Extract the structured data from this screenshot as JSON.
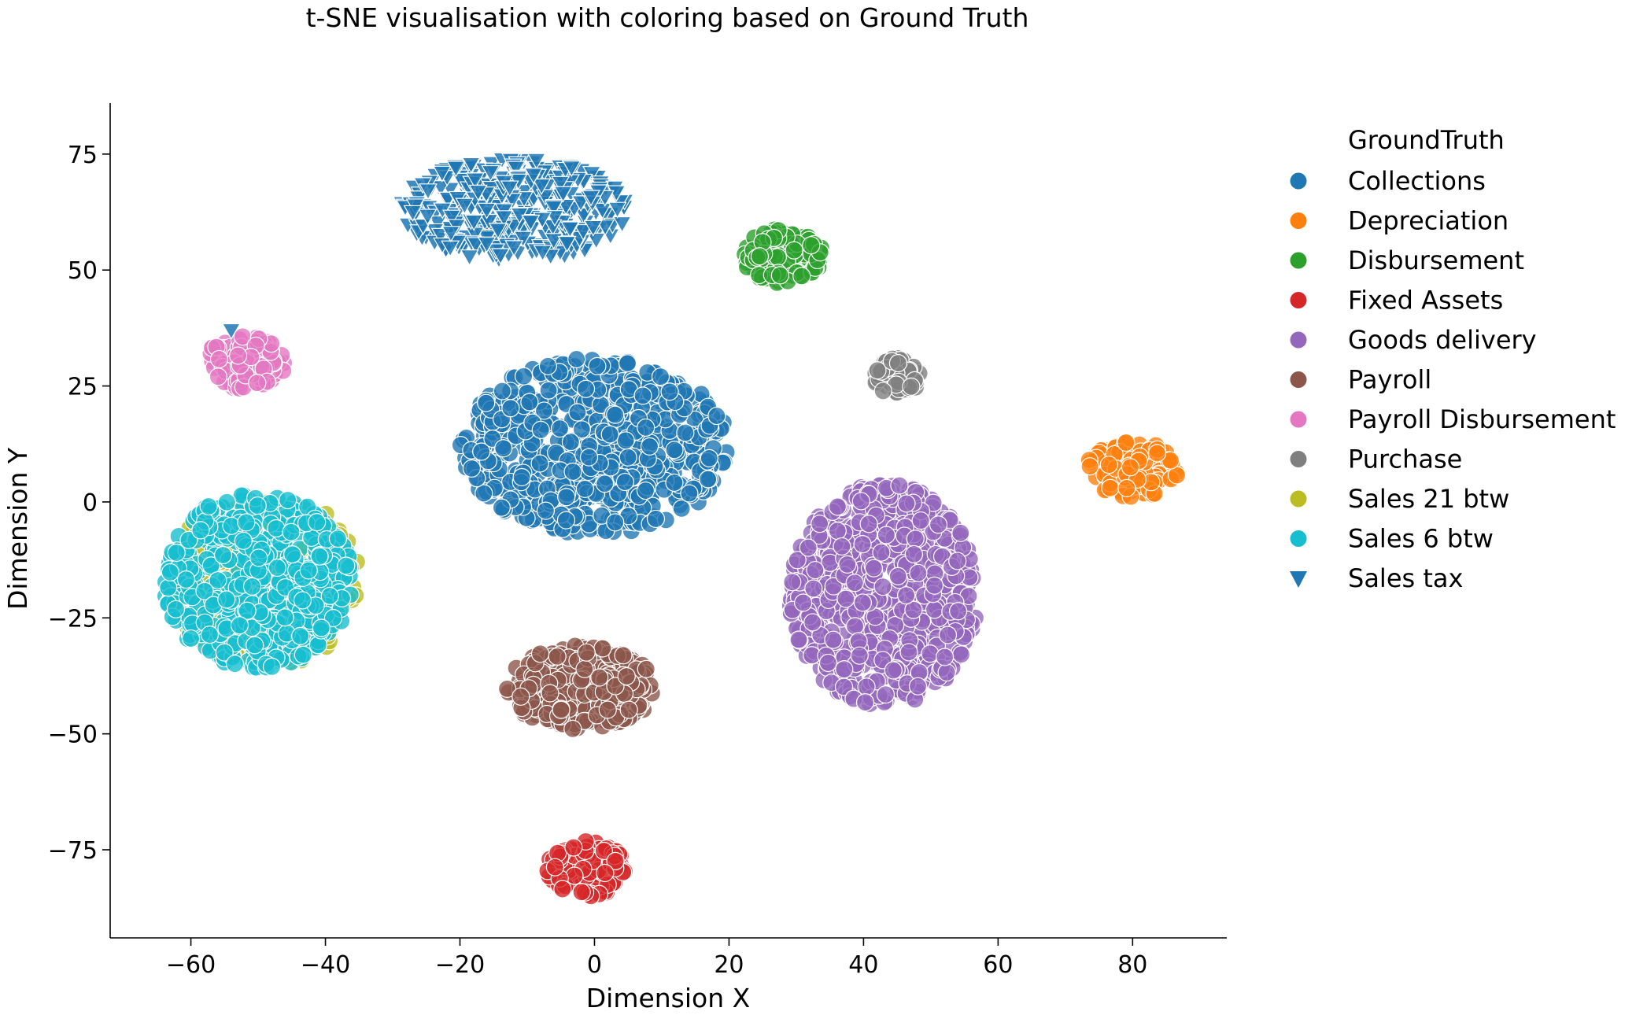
{
  "chart_data": {
    "type": "scatter",
    "title": "t-SNE visualisation with coloring based on Ground Truth",
    "xlabel": "Dimension X",
    "ylabel": "Dimension Y",
    "xlim": [
      -72,
      94
    ],
    "ylim": [
      -94,
      86
    ],
    "xticks": [
      -60,
      -40,
      -20,
      0,
      20,
      40,
      60,
      80
    ],
    "yticks": [
      -75,
      -50,
      -25,
      0,
      25,
      50,
      75
    ],
    "grid": false,
    "legend": {
      "title": "GroundTruth",
      "placement": "outside-right"
    },
    "series": [
      {
        "name": "Collections",
        "color": "#1f77b4",
        "marker": "circle",
        "clusters": [
          {
            "cx": 0,
            "cy": 12,
            "rx": 20,
            "ry": 19,
            "count": 700
          }
        ]
      },
      {
        "name": "Depreciation",
        "color": "#ff7f0e",
        "marker": "circle",
        "clusters": [
          {
            "cx": 80,
            "cy": 7,
            "rx": 7,
            "ry": 6,
            "count": 130
          }
        ]
      },
      {
        "name": "Disbursement",
        "color": "#2ca02c",
        "marker": "circle",
        "clusters": [
          {
            "cx": 28,
            "cy": 53,
            "rx": 6,
            "ry": 6,
            "count": 120
          }
        ]
      },
      {
        "name": "Fixed Assets",
        "color": "#d62728",
        "marker": "circle",
        "clusters": [
          {
            "cx": -1,
            "cy": -79,
            "rx": 6,
            "ry": 6,
            "count": 110
          }
        ]
      },
      {
        "name": "Goods delivery",
        "color": "#9467bd",
        "marker": "circle",
        "clusters": [
          {
            "cx": 43,
            "cy": -20,
            "rx": 14,
            "ry": 24,
            "count": 700
          }
        ]
      },
      {
        "name": "Payroll",
        "color": "#8c564b",
        "marker": "circle",
        "clusters": [
          {
            "cx": -2,
            "cy": -40,
            "rx": 11,
            "ry": 9,
            "count": 320
          }
        ]
      },
      {
        "name": "Payroll Disbursement",
        "color": "#e377c2",
        "marker": "circle",
        "clusters": [
          {
            "cx": -52,
            "cy": 30,
            "rx": 6,
            "ry": 6,
            "count": 110
          }
        ]
      },
      {
        "name": "Purchase",
        "color": "#7f7f7f",
        "marker": "circle",
        "clusters": [
          {
            "cx": 45,
            "cy": 27,
            "rx": 3.5,
            "ry": 4,
            "count": 60
          }
        ]
      },
      {
        "name": "Sales 21 btw",
        "color": "#bcbd22",
        "marker": "circle",
        "clusters": [
          {
            "cx": -49,
            "cy": -17,
            "rx": 14,
            "ry": 19,
            "count": 250
          }
        ]
      },
      {
        "name": "Sales 6 btw",
        "color": "#17becf",
        "marker": "circle",
        "clusters": [
          {
            "cx": -50,
            "cy": -17,
            "rx": 14,
            "ry": 19,
            "count": 500
          }
        ]
      },
      {
        "name": "Sales tax",
        "color": "#1f77b4",
        "marker": "triangle-down",
        "clusters": [
          {
            "cx": -12,
            "cy": 63,
            "rx": 17,
            "ry": 11,
            "count": 380
          }
        ],
        "outliers": [
          {
            "x": -54,
            "y": 37
          }
        ]
      }
    ]
  }
}
